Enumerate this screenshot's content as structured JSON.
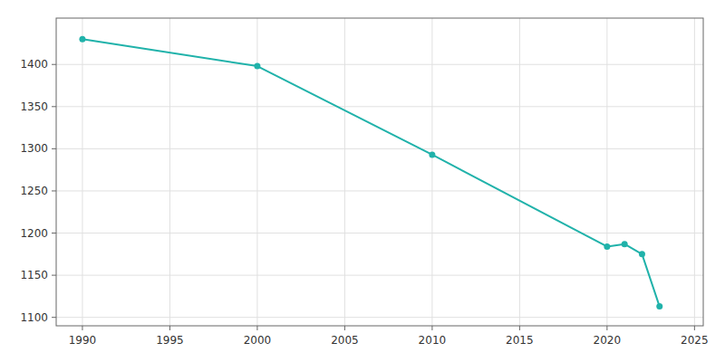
{
  "chart_data": {
    "type": "line",
    "x": [
      1990,
      2000,
      2010,
      2020,
      2021,
      2022,
      2023
    ],
    "values": [
      1430,
      1398,
      1293,
      1184,
      1187,
      1175,
      1113
    ],
    "color": "#20B2AA",
    "marker": "circle",
    "xlim": [
      1988.5,
      2025.5
    ],
    "ylim": [
      1090,
      1455
    ],
    "xticks": [
      1990,
      1995,
      2000,
      2005,
      2010,
      2015,
      2020,
      2025
    ],
    "yticks": [
      1100,
      1150,
      1200,
      1250,
      1300,
      1350,
      1400
    ],
    "grid": true
  }
}
